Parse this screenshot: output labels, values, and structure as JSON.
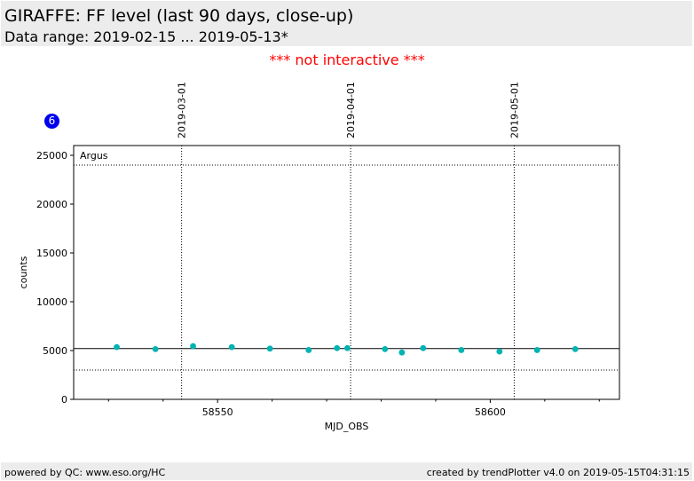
{
  "header": {
    "title": "GIRAFFE: FF level (last 90 days, close-up)",
    "subtitle": "Data range: 2019-02-15 ... 2019-05-13*"
  },
  "notice": "*** not interactive ***",
  "badge": "6",
  "footer": {
    "left": "powered by QC: www.eso.org/HC",
    "right": "created by trendPlotter v4.0 on 2019-05-15T04:31:15"
  },
  "colors": {
    "marker": "#00b3b3",
    "notice": "#ff0000",
    "badge": "#0000ee",
    "header_bg": "#ececec"
  },
  "chart_data": {
    "type": "scatter",
    "xlabel": "MJD_OBS",
    "ylabel": "counts",
    "panel_label": "Argus",
    "xlim": [
      58523.6,
      58623.7
    ],
    "ylim": [
      0,
      26000
    ],
    "x_ticks": [
      58550,
      58600
    ],
    "x_tick_labels": [
      "58550",
      "58600"
    ],
    "x_minor_ticks": [
      58530,
      58540,
      58560,
      58570,
      58580,
      58590,
      58610,
      58620
    ],
    "y_ticks": [
      0,
      5000,
      10000,
      15000,
      20000,
      25000
    ],
    "y_tick_labels": [
      "0",
      "5000",
      "10000",
      "15000",
      "20000",
      "25000"
    ],
    "date_markers": [
      {
        "x": 58543.4,
        "label": "2019-03-01"
      },
      {
        "x": 58574.4,
        "label": "2019-04-01"
      },
      {
        "x": 58604.4,
        "label": "2019-05-01"
      }
    ],
    "reference_lines": [
      {
        "y": 24000,
        "style": "dotted"
      },
      {
        "y": 5200,
        "style": "solid"
      },
      {
        "y": 3000,
        "style": "dotted"
      }
    ],
    "points": [
      {
        "x": 58531.5,
        "y": 5350
      },
      {
        "x": 58538.6,
        "y": 5150
      },
      {
        "x": 58545.5,
        "y": 5450
      },
      {
        "x": 58552.6,
        "y": 5350
      },
      {
        "x": 58559.6,
        "y": 5200
      },
      {
        "x": 58566.7,
        "y": 5050
      },
      {
        "x": 58571.9,
        "y": 5250
      },
      {
        "x": 58573.8,
        "y": 5250
      },
      {
        "x": 58580.7,
        "y": 5150
      },
      {
        "x": 58583.8,
        "y": 4800
      },
      {
        "x": 58587.7,
        "y": 5250
      },
      {
        "x": 58594.7,
        "y": 5050
      },
      {
        "x": 58601.7,
        "y": 4900
      },
      {
        "x": 58608.6,
        "y": 5050
      },
      {
        "x": 58615.6,
        "y": 5150
      }
    ]
  }
}
